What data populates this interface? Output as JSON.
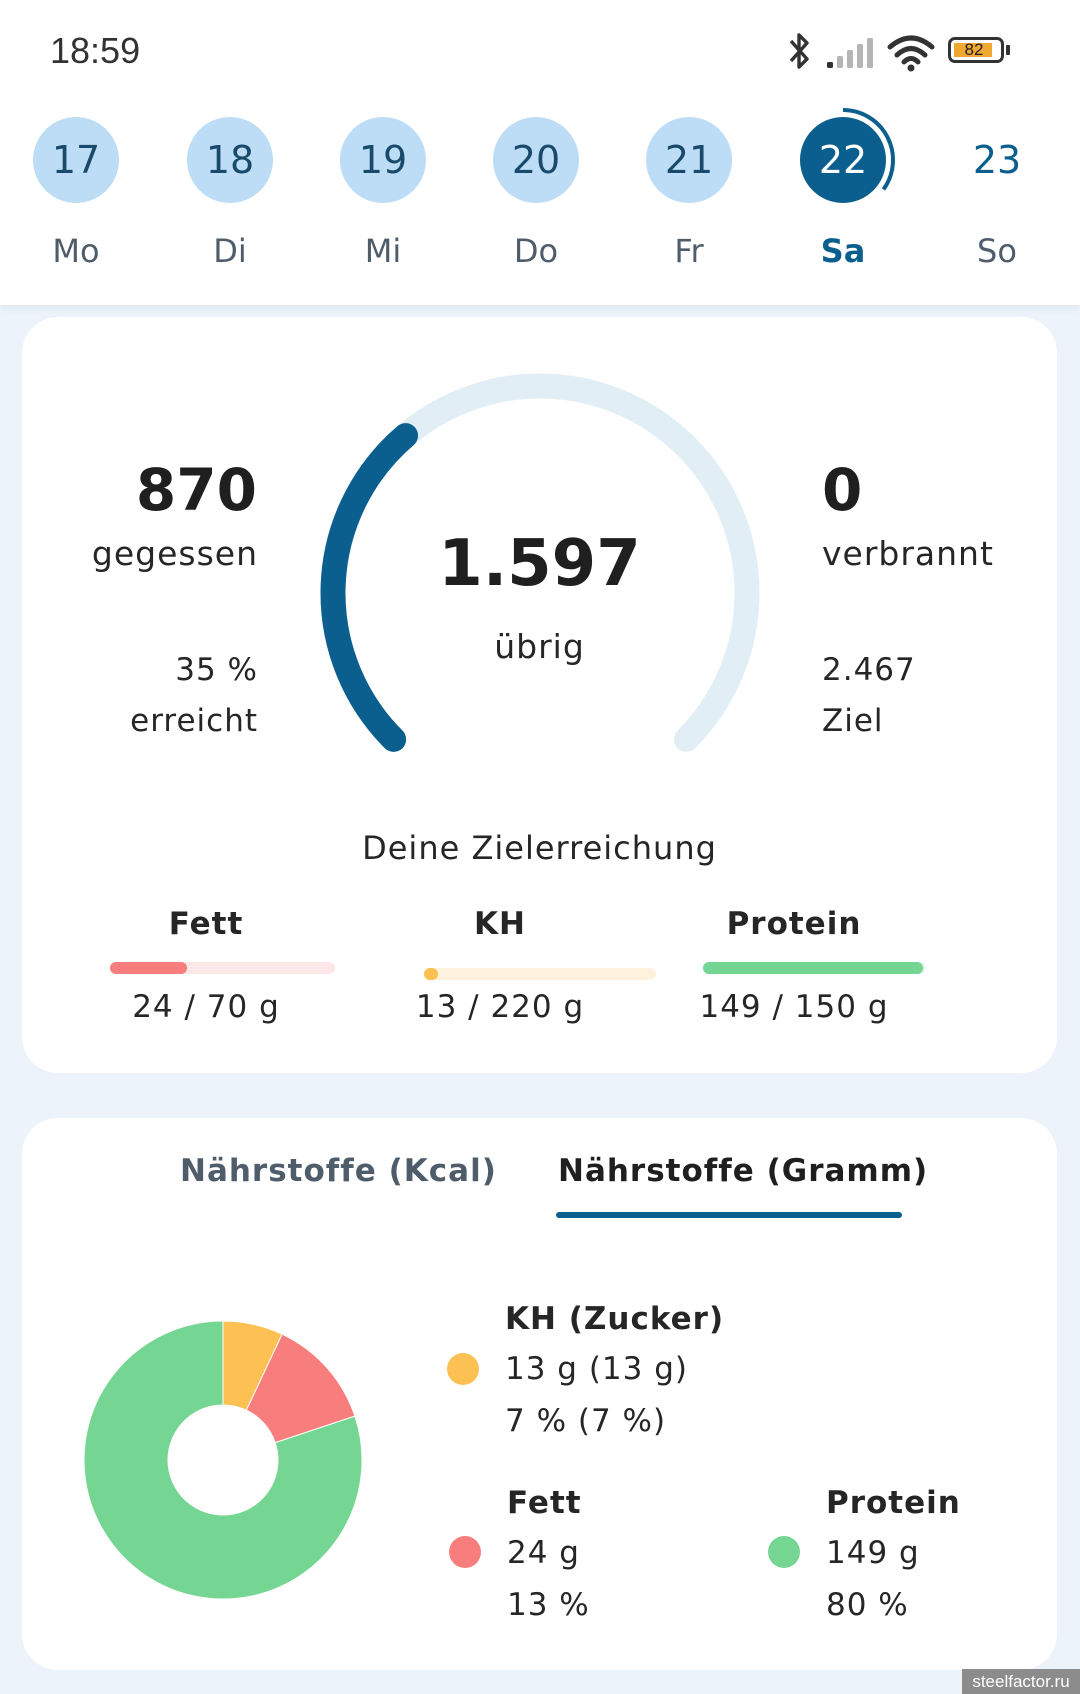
{
  "status_bar": {
    "time": "18:59",
    "battery_level": "82",
    "icons": [
      "bluetooth-icon",
      "signal-icon",
      "wifi-icon",
      "battery-icon"
    ]
  },
  "week": {
    "days": [
      {
        "date": "17",
        "label": "Mo",
        "state": "past"
      },
      {
        "date": "18",
        "label": "Di",
        "state": "past"
      },
      {
        "date": "19",
        "label": "Mi",
        "state": "past"
      },
      {
        "date": "20",
        "label": "Do",
        "state": "past"
      },
      {
        "date": "21",
        "label": "Fr",
        "state": "past"
      },
      {
        "date": "22",
        "label": "Sa",
        "state": "selected",
        "progress": 0.35
      },
      {
        "date": "23",
        "label": "So",
        "state": "future"
      }
    ]
  },
  "summary": {
    "eaten_value": "870",
    "eaten_label": "gegessen",
    "achieved_value": "35 %",
    "achieved_label": "erreicht",
    "remaining_value": "1.597",
    "remaining_label": "übrig",
    "burned_value": "0",
    "burned_label": "verbrannt",
    "goal_value": "2.467",
    "goal_label": "Ziel",
    "gauge_progress": 0.35
  },
  "goals": {
    "title": "Deine Zielerreichung",
    "macros": [
      {
        "name": "Fett",
        "value_text": "24 / 70 g",
        "progress": 0.343,
        "color": "#F87E7E",
        "track": "#FDE6E6"
      },
      {
        "name": "KH",
        "value_text": "13 / 220 g",
        "progress": 0.059,
        "color": "#FDC153",
        "track": "#FEF2DE"
      },
      {
        "name": "Protein",
        "value_text": "149 / 150 g",
        "progress": 0.993,
        "color": "#75D592",
        "track": "#DDF5E4"
      }
    ]
  },
  "nutrients": {
    "tabs": [
      {
        "label": "Nährstoffe (Kcal)",
        "active": false
      },
      {
        "label": "Nährstoffe (Gramm)",
        "active": true
      }
    ],
    "legend": {
      "carbs": {
        "title": "KH (Zucker)",
        "grams": "13 g (13 g)",
        "percent": "7 % (7 %)",
        "color": "#FDC153"
      },
      "fat": {
        "title": "Fett",
        "grams": "24 g",
        "percent": "13 %",
        "color": "#F87E7E"
      },
      "protein": {
        "title": "Protein",
        "grams": "149 g",
        "percent": "80 %",
        "color": "#75D592"
      }
    }
  },
  "chart_data": {
    "type": "pie",
    "title": "Nährstoffe (Gramm)",
    "categories": [
      "KH",
      "Fett",
      "Protein"
    ],
    "values": [
      13,
      24,
      149
    ],
    "percents": [
      7,
      13,
      80
    ],
    "colors": [
      "#FDC153",
      "#F87E7E",
      "#75D592"
    ],
    "donut": true
  },
  "colors": {
    "accent": "#0B5F8E",
    "gauge_track": "#E2EEF6",
    "day_past_bg": "#BCDDF5",
    "page_bg": "#ECF3FA"
  },
  "watermark": "steelfactor.ru"
}
